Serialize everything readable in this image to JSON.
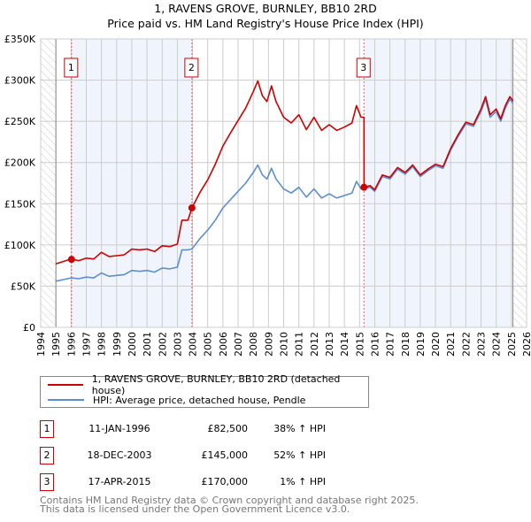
{
  "title_line1": "1, RAVENS GROVE, BURNLEY, BB10 2RD",
  "title_line2": "Price paid vs. HM Land Registry's House Price Index (HPI)",
  "chart_data": {
    "type": "line",
    "ylim": [
      0,
      350000
    ],
    "xlim": [
      1994,
      2026
    ],
    "yticks": [
      {
        "v": 0,
        "label": "£0"
      },
      {
        "v": 50000,
        "label": "£50K"
      },
      {
        "v": 100000,
        "label": "£100K"
      },
      {
        "v": 150000,
        "label": "£150K"
      },
      {
        "v": 200000,
        "label": "£200K"
      },
      {
        "v": 250000,
        "label": "£250K"
      },
      {
        "v": 300000,
        "label": "£300K"
      },
      {
        "v": 350000,
        "label": "£350K"
      }
    ],
    "xticks": [
      "1994",
      "1995",
      "1996",
      "1997",
      "1998",
      "1999",
      "2000",
      "2001",
      "2002",
      "2003",
      "2004",
      "2005",
      "2006",
      "2007",
      "2008",
      "2009",
      "2010",
      "2011",
      "2012",
      "2013",
      "2014",
      "2015",
      "2016",
      "2017",
      "2018",
      "2019",
      "2020",
      "2021",
      "2022",
      "2023",
      "2024",
      "2025",
      "2026"
    ],
    "grid": true,
    "data_range": [
      1995,
      2025.1
    ],
    "series": [
      {
        "name": "1, RAVENS GROVE, BURNLEY, BB10 2RD (detached house)",
        "color": "#cc0000",
        "x": [
          1995,
          1995.5,
          1996,
          1996.5,
          1997,
          1997.5,
          1998,
          1998.5,
          1999,
          1999.5,
          2000,
          2000.5,
          2001,
          2001.5,
          2002,
          2002.5,
          2003,
          2003.3,
          2003.7,
          2003.96,
          2004.5,
          2005,
          2005.5,
          2006,
          2006.5,
          2007,
          2007.5,
          2008,
          2008.3,
          2008.6,
          2008.9,
          2009.2,
          2009.5,
          2010,
          2010.5,
          2011,
          2011.5,
          2012,
          2012.5,
          2013,
          2013.5,
          2014,
          2014.5,
          2014.8,
          2015.1,
          2015.29,
          2015.3,
          2015.7,
          2016,
          2016.5,
          2017,
          2017.5,
          2018,
          2018.5,
          2019,
          2019.5,
          2020,
          2020.5,
          2021,
          2021.5,
          2022,
          2022.5,
          2023,
          2023.3,
          2023.6,
          2024,
          2024.3,
          2024.6,
          2024.9,
          2025.1
        ],
        "y": [
          77000,
          80000,
          83000,
          81000,
          84000,
          83000,
          91000,
          86000,
          87000,
          88000,
          95000,
          94000,
          95000,
          92000,
          99000,
          98000,
          101000,
          130000,
          130000,
          145000,
          164000,
          179000,
          198000,
          220000,
          236000,
          251000,
          266000,
          286000,
          299000,
          281000,
          274000,
          293000,
          274000,
          255000,
          248000,
          258000,
          240000,
          255000,
          239000,
          246000,
          239000,
          243000,
          248000,
          269000,
          255000,
          255000,
          170000,
          172000,
          167000,
          185000,
          182000,
          194000,
          188000,
          197000,
          185000,
          192000,
          198000,
          195000,
          217000,
          234000,
          249000,
          246000,
          265000,
          280000,
          258000,
          265000,
          253000,
          269000,
          280000,
          275000
        ]
      },
      {
        "name": "HPI: Average price, detached house, Pendle",
        "color": "#5b8fd0",
        "x": [
          1995,
          1995.5,
          1996,
          1996.5,
          1997,
          1997.5,
          1998,
          1998.5,
          1999,
          1999.5,
          2000,
          2000.5,
          2001,
          2001.5,
          2002,
          2002.5,
          2003,
          2003.3,
          2003.7,
          2003.96,
          2004.5,
          2005,
          2005.5,
          2006,
          2006.5,
          2007,
          2007.5,
          2008,
          2008.3,
          2008.6,
          2008.9,
          2009.2,
          2009.5,
          2010,
          2010.5,
          2011,
          2011.5,
          2012,
          2012.5,
          2013,
          2013.5,
          2014,
          2014.5,
          2014.8,
          2015.1,
          2015.3,
          2015.7,
          2016,
          2016.5,
          2017,
          2017.5,
          2018,
          2018.5,
          2019,
          2019.5,
          2020,
          2020.5,
          2021,
          2021.5,
          2022,
          2022.5,
          2023,
          2023.3,
          2023.6,
          2024,
          2024.3,
          2024.6,
          2024.9,
          2025.1
        ],
        "y": [
          56000,
          58000,
          60000,
          59000,
          61000,
          60000,
          66000,
          62000,
          63000,
          64000,
          69000,
          68000,
          69000,
          67000,
          72000,
          71000,
          73000,
          94000,
          94000,
          95000,
          108000,
          118000,
          130000,
          145000,
          155000,
          165000,
          175000,
          188000,
          197000,
          185000,
          180000,
          193000,
          180000,
          168000,
          163000,
          170000,
          158000,
          168000,
          157000,
          162000,
          157000,
          160000,
          163000,
          177000,
          168000,
          168000,
          170000,
          165000,
          183000,
          180000,
          192000,
          186000,
          195000,
          183000,
          190000,
          196000,
          193000,
          215000,
          232000,
          247000,
          244000,
          262000,
          277000,
          255000,
          262000,
          250000,
          266000,
          277000,
          272000
        ]
      }
    ],
    "sales": [
      {
        "label": "1",
        "x": 1996.03,
        "y": 82500
      },
      {
        "label": "2",
        "x": 2003.96,
        "y": 145000
      },
      {
        "label": "3",
        "x": 2015.29,
        "y": 170000
      }
    ],
    "shaded": [
      [
        1996.03,
        2003.96
      ],
      [
        2015.29,
        2025.1
      ]
    ],
    "legend_position": "below"
  },
  "legend": [
    {
      "label": "1, RAVENS GROVE, BURNLEY, BB10 2RD (detached house)",
      "color": "#cc0000"
    },
    {
      "label": "HPI: Average price, detached house, Pendle",
      "color": "#5b8fd0"
    }
  ],
  "transactions": [
    {
      "num": "1",
      "date": "11-JAN-1996",
      "price": "£82,500",
      "hpi": "38% ↑ HPI"
    },
    {
      "num": "2",
      "date": "18-DEC-2003",
      "price": "£145,000",
      "hpi": "52% ↑ HPI"
    },
    {
      "num": "3",
      "date": "17-APR-2015",
      "price": "£170,000",
      "hpi": "1% ↑ HPI"
    }
  ],
  "footer_line1": "Contains HM Land Registry data © Crown copyright and database right 2025.",
  "footer_line2": "This data is licensed under the Open Government Licence v3.0."
}
